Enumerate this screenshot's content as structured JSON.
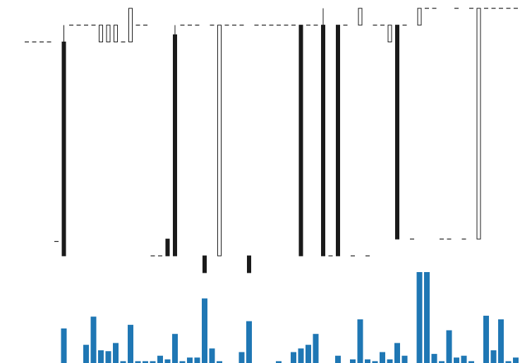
{
  "chart_data": {
    "type": "candlestick-volume",
    "title": "",
    "xlabel": "",
    "ylabel": "",
    "colors": {
      "up_body_fill": "#ffffff",
      "down_body_fill": "#1a1a1a",
      "candle_edge": "#1a1a1a",
      "volume_bar": "#1f77b4"
    },
    "grid": false,
    "price_ylim": [
      0,
      100
    ],
    "volume_ylim": [
      0,
      100
    ],
    "candles": [
      {
        "open": 89,
        "high": 89,
        "low": 89,
        "close": 89,
        "volume": 0
      },
      {
        "open": 89,
        "high": 89,
        "low": 89,
        "close": 89,
        "volume": 0
      },
      {
        "open": 89,
        "high": 89,
        "low": 89,
        "close": 89,
        "volume": 0
      },
      {
        "open": 89,
        "high": 89,
        "low": 89,
        "close": 89,
        "volume": 0
      },
      {
        "open": 6,
        "high": 6,
        "low": 6,
        "close": 6,
        "volume": 0
      },
      {
        "open": 89,
        "high": 96,
        "low": 0,
        "close": 0,
        "volume": 38
      },
      {
        "open": 96,
        "high": 96,
        "low": 96,
        "close": 96,
        "volume": 0
      },
      {
        "open": 96,
        "high": 96,
        "low": 96,
        "close": 96,
        "volume": 0
      },
      {
        "open": 96,
        "high": 96,
        "low": 96,
        "close": 96,
        "volume": 20
      },
      {
        "open": 96,
        "high": 96,
        "low": 96,
        "close": 96,
        "volume": 51
      },
      {
        "open": 89,
        "high": 96,
        "low": 89,
        "close": 96,
        "volume": 14
      },
      {
        "open": 89,
        "high": 96,
        "low": 89,
        "close": 96,
        "volume": 13
      },
      {
        "open": 89,
        "high": 96,
        "low": 89,
        "close": 96,
        "volume": 22
      },
      {
        "open": 89,
        "high": 89,
        "low": 89,
        "close": 89,
        "volume": 2
      },
      {
        "open": 89,
        "high": 103,
        "low": 89,
        "close": 103,
        "volume": 42
      },
      {
        "open": 96,
        "high": 96,
        "low": 96,
        "close": 96,
        "volume": 2
      },
      {
        "open": 96,
        "high": 96,
        "low": 96,
        "close": 96,
        "volume": 2
      },
      {
        "open": 0,
        "high": 0,
        "low": 0,
        "close": 0,
        "volume": 2
      },
      {
        "open": 0,
        "high": 0,
        "low": 0,
        "close": 0,
        "volume": 8
      },
      {
        "open": 7,
        "high": 7,
        "low": 0,
        "close": 0,
        "volume": 4
      },
      {
        "open": 92,
        "high": 96,
        "low": 0,
        "close": 0,
        "volume": 32
      },
      {
        "open": 96,
        "high": 96,
        "low": 96,
        "close": 96,
        "volume": 2
      },
      {
        "open": 96,
        "high": 96,
        "low": 96,
        "close": 96,
        "volume": 6
      },
      {
        "open": 96,
        "high": 96,
        "low": 96,
        "close": 96,
        "volume": 6
      },
      {
        "open": 0,
        "high": 0,
        "low": -7,
        "close": -7,
        "volume": 71
      },
      {
        "open": 96,
        "high": 96,
        "low": 96,
        "close": 96,
        "volume": 16
      },
      {
        "open": 0,
        "high": 96,
        "low": 0,
        "close": 96,
        "volume": 2
      },
      {
        "open": 96,
        "high": 96,
        "low": 96,
        "close": 96,
        "volume": 0
      },
      {
        "open": 96,
        "high": 96,
        "low": 96,
        "close": 96,
        "volume": 0
      },
      {
        "open": 96,
        "high": 96,
        "low": 96,
        "close": 96,
        "volume": 12
      },
      {
        "open": 0,
        "high": 0,
        "low": -7,
        "close": -7,
        "volume": 46
      },
      {
        "open": 96,
        "high": 96,
        "low": 96,
        "close": 96,
        "volume": 0
      },
      {
        "open": 96,
        "high": 96,
        "low": 96,
        "close": 96,
        "volume": 0
      },
      {
        "open": 96,
        "high": 96,
        "low": 96,
        "close": 96,
        "volume": 0
      },
      {
        "open": 96,
        "high": 96,
        "low": 96,
        "close": 96,
        "volume": 2
      },
      {
        "open": 96,
        "high": 96,
        "low": 96,
        "close": 96,
        "volume": 0
      },
      {
        "open": 96,
        "high": 96,
        "low": 96,
        "close": 96,
        "volume": 12
      },
      {
        "open": 96,
        "high": 96,
        "low": 0,
        "close": 0,
        "volume": 16
      },
      {
        "open": 96,
        "high": 96,
        "low": 96,
        "close": 96,
        "volume": 20
      },
      {
        "open": 96,
        "high": 96,
        "low": 96,
        "close": 96,
        "volume": 32
      },
      {
        "open": 96,
        "high": 103,
        "low": 0,
        "close": 0,
        "volume": 0
      },
      {
        "open": 0,
        "high": 0,
        "low": 0,
        "close": 0,
        "volume": 0
      },
      {
        "open": 96,
        "high": 96,
        "low": 0,
        "close": 0,
        "volume": 8
      },
      {
        "open": 96,
        "high": 96,
        "low": 96,
        "close": 96,
        "volume": 0
      },
      {
        "open": 0,
        "high": 0,
        "low": 0,
        "close": 0,
        "volume": 4
      },
      {
        "open": 96,
        "high": 103,
        "low": 96,
        "close": 103,
        "volume": 48
      },
      {
        "open": 0,
        "high": 0,
        "low": 0,
        "close": 0,
        "volume": 4
      },
      {
        "open": 96,
        "high": 96,
        "low": 96,
        "close": 96,
        "volume": 2
      },
      {
        "open": 96,
        "high": 96,
        "low": 96,
        "close": 96,
        "volume": 12
      },
      {
        "open": 89,
        "high": 96,
        "low": 89,
        "close": 96,
        "volume": 4
      },
      {
        "open": 96,
        "high": 96,
        "low": 7,
        "close": 7,
        "volume": 22
      },
      {
        "open": 96,
        "high": 96,
        "low": 96,
        "close": 96,
        "volume": 8
      },
      {
        "open": 7,
        "high": 7,
        "low": 7,
        "close": 7,
        "volume": 0
      },
      {
        "open": 96,
        "high": 103,
        "low": 96,
        "close": 103,
        "volume": 100
      },
      {
        "open": 103,
        "high": 103,
        "low": 103,
        "close": 103,
        "volume": 100
      },
      {
        "open": 103,
        "high": 103,
        "low": 103,
        "close": 103,
        "volume": 10
      },
      {
        "open": 7,
        "high": 7,
        "low": 7,
        "close": 7,
        "volume": 2
      },
      {
        "open": 7,
        "high": 7,
        "low": 7,
        "close": 7,
        "volume": 36
      },
      {
        "open": 103,
        "high": 103,
        "low": 103,
        "close": 103,
        "volume": 6
      },
      {
        "open": 7,
        "high": 7,
        "low": 7,
        "close": 7,
        "volume": 8
      },
      {
        "open": 103,
        "high": 103,
        "low": 103,
        "close": 103,
        "volume": 2
      },
      {
        "open": 7,
        "high": 103,
        "low": 7,
        "close": 103,
        "volume": 0
      },
      {
        "open": 103,
        "high": 103,
        "low": 103,
        "close": 103,
        "volume": 52
      },
      {
        "open": 103,
        "high": 103,
        "low": 103,
        "close": 103,
        "volume": 14
      },
      {
        "open": 103,
        "high": 103,
        "low": 103,
        "close": 103,
        "volume": 48
      },
      {
        "open": 103,
        "high": 103,
        "low": 103,
        "close": 103,
        "volume": 2
      },
      {
        "open": 103,
        "high": 103,
        "low": 103,
        "close": 103,
        "volume": 6
      }
    ]
  }
}
